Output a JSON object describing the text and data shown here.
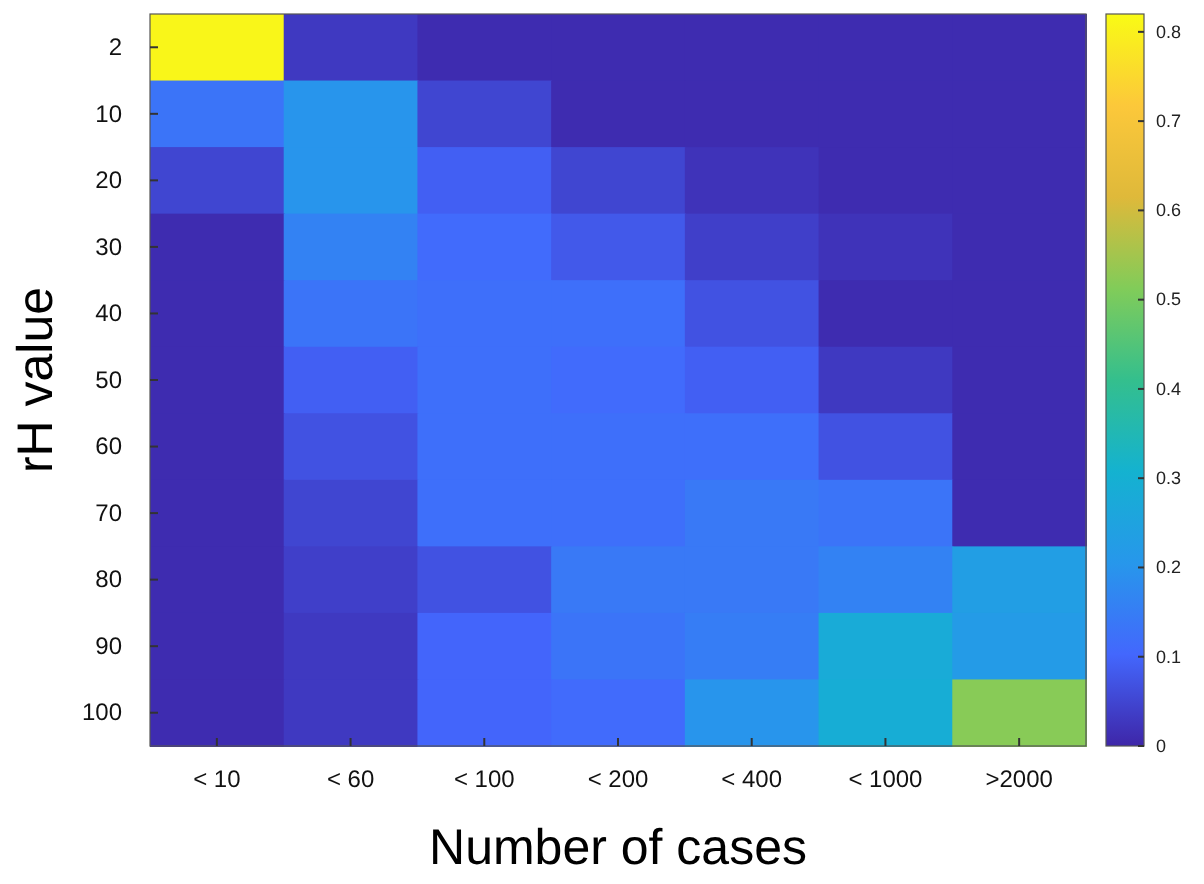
{
  "chart_data": {
    "type": "heatmap",
    "xlabel": "Number of cases",
    "ylabel": "rH value",
    "categories": [
      "< 10",
      "< 60",
      "< 100",
      "< 200",
      "< 400",
      "< 1000",
      ">2000"
    ],
    "y_categories": [
      "2",
      "10",
      "20",
      "30",
      "40",
      "50",
      "60",
      "70",
      "80",
      "90",
      "100"
    ],
    "cells": [
      [
        0.81,
        0.03,
        0.01,
        0.01,
        0.01,
        0.01,
        0.01
      ],
      [
        0.13,
        0.2,
        0.05,
        0.01,
        0.01,
        0.01,
        0.01
      ],
      [
        0.05,
        0.2,
        0.09,
        0.05,
        0.02,
        0.01,
        0.01
      ],
      [
        0.01,
        0.16,
        0.11,
        0.08,
        0.04,
        0.02,
        0.01
      ],
      [
        0.01,
        0.13,
        0.12,
        0.12,
        0.07,
        0.01,
        0.01
      ],
      [
        0.01,
        0.09,
        0.12,
        0.11,
        0.09,
        0.03,
        0.01
      ],
      [
        0.01,
        0.07,
        0.12,
        0.12,
        0.12,
        0.07,
        0.01
      ],
      [
        0.01,
        0.05,
        0.12,
        0.12,
        0.14,
        0.13,
        0.01
      ],
      [
        0.01,
        0.04,
        0.07,
        0.14,
        0.14,
        0.16,
        0.23
      ],
      [
        0.01,
        0.03,
        0.1,
        0.13,
        0.15,
        0.28,
        0.22
      ],
      [
        0.01,
        0.03,
        0.1,
        0.11,
        0.2,
        0.29,
        0.52
      ]
    ],
    "clim": [
      0,
      0.82
    ],
    "cticks": [
      0,
      0.1,
      0.2,
      0.3,
      0.4,
      0.5,
      0.6,
      0.7,
      0.8
    ]
  }
}
